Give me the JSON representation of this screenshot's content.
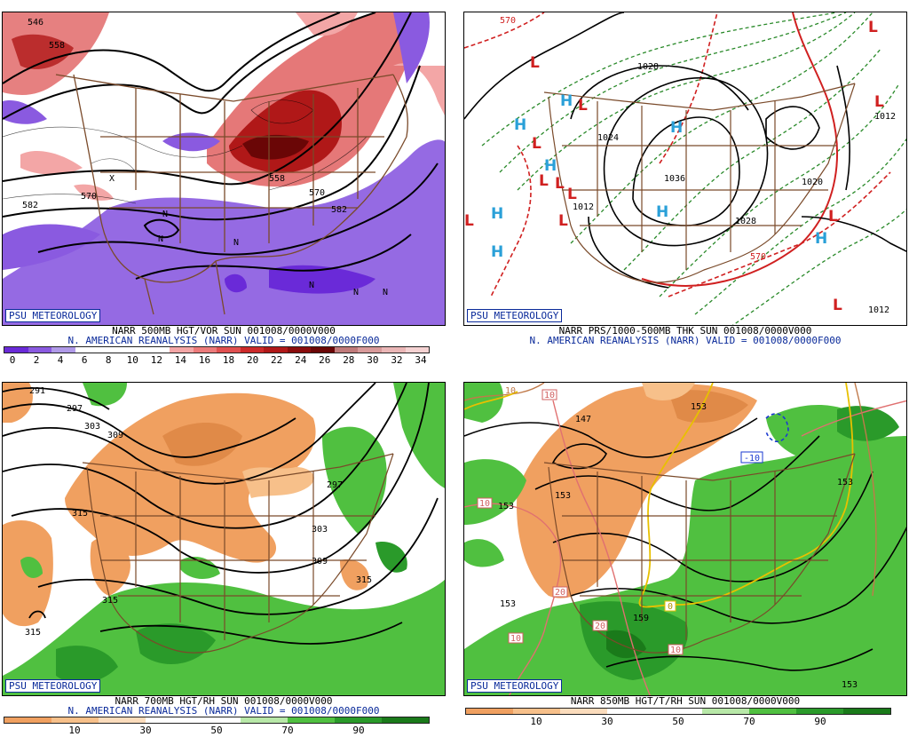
{
  "badge": "PSU METEOROLOGY",
  "panels": {
    "p1": {
      "caption1": "NARR 500MB HGT/VOR SUN 001008/0000V000",
      "caption2": "N. AMERICAN REANALYSIS (NARR) VALID = 001008/0000F000",
      "ticks": [
        "0",
        "2",
        "4",
        "6",
        "8",
        "10",
        "12",
        "14",
        "16",
        "18",
        "20",
        "22",
        "24",
        "26",
        "28",
        "30",
        "32",
        "34"
      ],
      "colors": [
        "#6a2ad8",
        "#8a5ae0",
        "#b09ae8",
        "#ffffff",
        "#ffffff",
        "#ffffff",
        "#ffffff",
        "#f3a6a6",
        "#ec7b7b",
        "#e05050",
        "#cc2a2a",
        "#b01818",
        "#8a0c0c",
        "#6a0606",
        "#c07a7a",
        "#d89a9a",
        "#eab6b6",
        "#f5d2d2"
      ],
      "contour_labels": [
        "546",
        "558",
        "570",
        "582",
        "570",
        "558",
        "582"
      ],
      "vort_markers": [
        "N",
        "N",
        "N",
        "N",
        "N",
        "N",
        "X"
      ]
    },
    "p2": {
      "caption1": "NARR PRS/1000-500MB THK SUN 001008/0000V000",
      "caption2": "N. AMERICAN REANALYSIS (NARR) VALID = 001008/0000F000",
      "contour_labels": [
        "570",
        "1028",
        "1024",
        "1036",
        "1028",
        "1020",
        "1012",
        "1012",
        "570",
        "1012"
      ],
      "highs": [
        "H",
        "H",
        "H",
        "H",
        "H",
        "H",
        "H",
        "H"
      ],
      "lows": [
        "L",
        "L",
        "L",
        "L",
        "L",
        "L",
        "L",
        "L",
        "L",
        "L",
        "L",
        "L"
      ]
    },
    "p3": {
      "caption1": "NARR 700MB HGT/RH SUN 001008/0000V000",
      "caption2": "N. AMERICAN REANALYSIS (NARR) VALID = 001008/0000F000",
      "ticks": [
        "10",
        "30",
        "50",
        "70",
        "90"
      ],
      "colors": [
        "#f0a060",
        "#f7c08a",
        "#fbdcbc",
        "#ffffff",
        "#ffffff",
        "#b8e8a8",
        "#50c040",
        "#2a9a2a",
        "#1a7a1a"
      ],
      "contour_labels": [
        "291",
        "297",
        "303",
        "309",
        "315",
        "297",
        "303",
        "309",
        "315",
        "315",
        "315"
      ]
    },
    "p4": {
      "caption1": "NARR 850MB HGT/T/RH SUN 001008/0000V000",
      "caption2": "",
      "ticks": [
        "10",
        "30",
        "50",
        "70",
        "90"
      ],
      "colors": [
        "#f0a060",
        "#f7c08a",
        "#fbdcbc",
        "#ffffff",
        "#ffffff",
        "#b8e8a8",
        "#50c040",
        "#2a9a2a",
        "#1a7a1a"
      ],
      "contour_labels": [
        "10",
        "147",
        "153",
        "153",
        "153",
        "153",
        "159",
        "153",
        "153"
      ],
      "temp_labels": [
        "10",
        "10",
        "-10",
        "20",
        "20",
        "10",
        "10",
        "0"
      ]
    }
  }
}
